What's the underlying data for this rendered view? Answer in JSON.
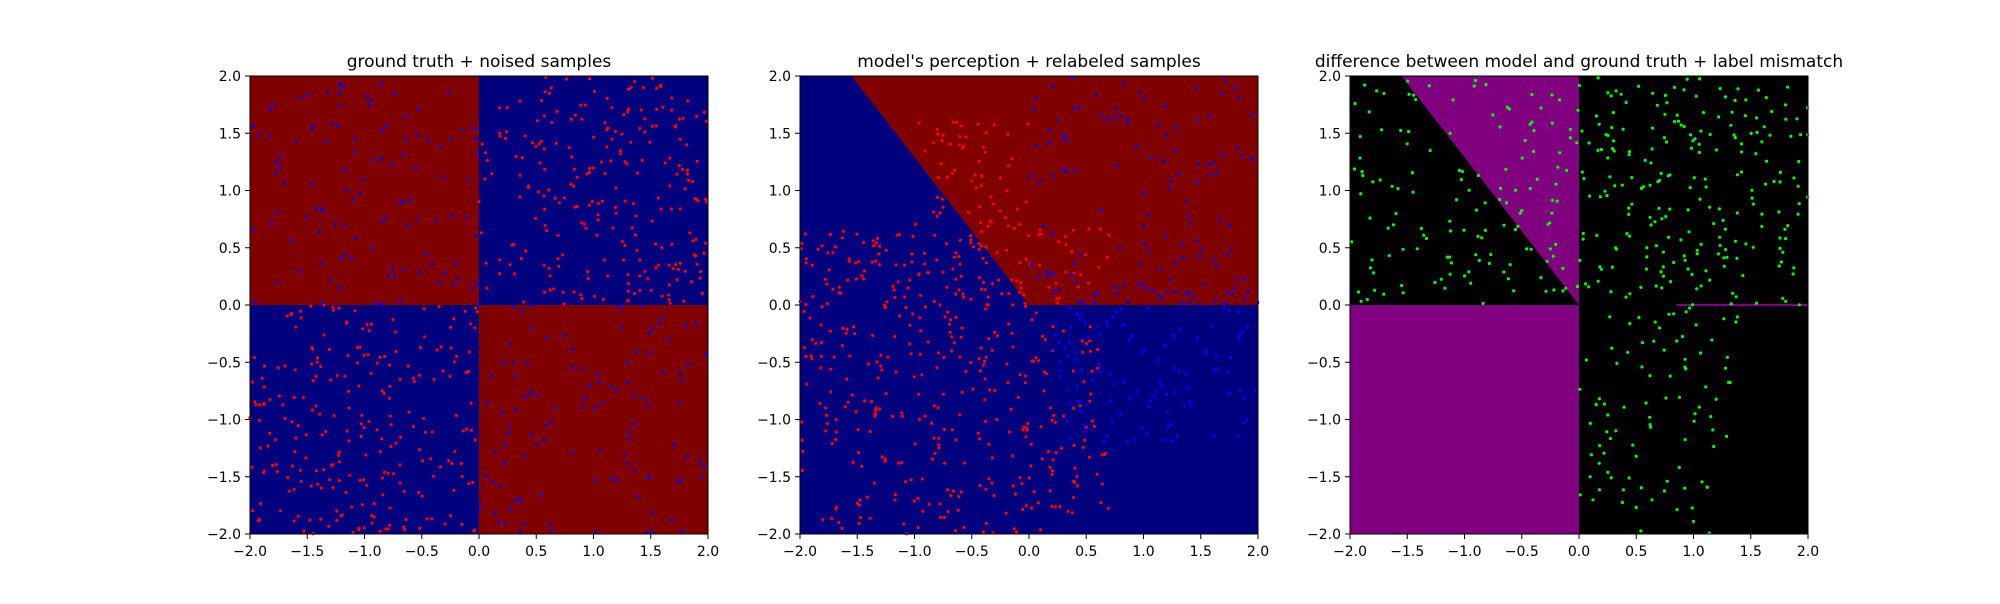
{
  "chart_data": [
    {
      "type": "scatter",
      "title": "ground truth + noised samples",
      "xlim": [
        -2.0,
        2.0
      ],
      "ylim": [
        -2.0,
        2.0
      ],
      "xticks": [
        "−2.0",
        "−1.5",
        "−1.0",
        "−0.5",
        "0.0",
        "0.5",
        "1.0",
        "1.5",
        "2.0"
      ],
      "yticks": [
        "−2.0",
        "−1.5",
        "−1.0",
        "−0.5",
        "0.0",
        "0.5",
        "1.0",
        "1.5",
        "2.0"
      ],
      "background_regions": [
        {
          "class": "red",
          "polygon": [
            [
              -2,
              0
            ],
            [
              0,
              0
            ],
            [
              0,
              2
            ],
            [
              -2,
              2
            ]
          ]
        },
        {
          "class": "blue",
          "polygon": [
            [
              0,
              0
            ],
            [
              2,
              0
            ],
            [
              2,
              2
            ],
            [
              0,
              2
            ]
          ]
        },
        {
          "class": "blue",
          "polygon": [
            [
              -2,
              -2
            ],
            [
              0,
              -2
            ],
            [
              0,
              0
            ],
            [
              -2,
              0
            ]
          ]
        },
        {
          "class": "red",
          "polygon": [
            [
              0,
              -2
            ],
            [
              2,
              -2
            ],
            [
              2,
              0
            ],
            [
              0,
              0
            ]
          ]
        }
      ],
      "point_clusters": [
        {
          "class": "blue",
          "x_range": [
            -2,
            0
          ],
          "y_range": [
            0,
            2
          ],
          "count": 110
        },
        {
          "class": "red",
          "x_range": [
            0,
            2
          ],
          "y_range": [
            0,
            2
          ],
          "count": 240
        },
        {
          "class": "red",
          "x_range": [
            -2,
            0
          ],
          "y_range": [
            -2,
            0
          ],
          "count": 240
        },
        {
          "class": "blue",
          "x_range": [
            0,
            2
          ],
          "y_range": [
            -2,
            0
          ],
          "count": 110
        }
      ]
    },
    {
      "type": "scatter",
      "title": "model's perception + relabeled samples",
      "xlim": [
        -2.0,
        2.0
      ],
      "ylim": [
        -2.0,
        2.0
      ],
      "xticks": [
        "−2.0",
        "−1.5",
        "−1.0",
        "−0.5",
        "0.0",
        "0.5",
        "1.0",
        "1.5",
        "2.0"
      ],
      "yticks": [
        "−2.0",
        "−1.5",
        "−1.0",
        "−0.5",
        "0.0",
        "0.5",
        "1.0",
        "1.5",
        "2.0"
      ],
      "background_regions": [
        {
          "class": "blue",
          "polygon": [
            [
              -2,
              -2
            ],
            [
              2,
              -2
            ],
            [
              2,
              2
            ],
            [
              -2,
              2
            ]
          ]
        },
        {
          "class": "red",
          "polygon": [
            [
              -1.55,
              2
            ],
            [
              2,
              2
            ],
            [
              2,
              0
            ],
            [
              0,
              0
            ]
          ]
        }
      ],
      "point_clusters": [
        {
          "class": "red",
          "x_range": [
            -1.0,
            0.0
          ],
          "y_range": [
            0.0,
            1.6
          ],
          "count": 90
        },
        {
          "class": "red",
          "x_range": [
            -2,
            0.7
          ],
          "y_range": [
            -2,
            0.7
          ],
          "count": 420
        },
        {
          "class": "blue",
          "x_range": [
            0.2,
            2.0
          ],
          "y_range": [
            -1.2,
            0.2
          ],
          "count": 130
        },
        {
          "class": "blue",
          "x_range": [
            0.0,
            2.0
          ],
          "y_range": [
            0.0,
            2.0
          ],
          "count": 120
        }
      ]
    },
    {
      "type": "scatter",
      "title": "difference between model and ground truth + label mismatch",
      "xlim": [
        -2.0,
        2.0
      ],
      "ylim": [
        -2.0,
        2.0
      ],
      "xticks": [
        "−2.0",
        "−1.5",
        "−1.0",
        "−0.5",
        "0.0",
        "0.5",
        "1.0",
        "1.5",
        "2.0"
      ],
      "yticks": [
        "−2.0",
        "−1.5",
        "−1.0",
        "−0.5",
        "0.0",
        "0.5",
        "1.0",
        "1.5",
        "2.0"
      ],
      "background_regions": [
        {
          "class": "black",
          "polygon": [
            [
              -2,
              -2
            ],
            [
              2,
              -2
            ],
            [
              2,
              2
            ],
            [
              -2,
              2
            ]
          ]
        },
        {
          "class": "purple",
          "polygon": [
            [
              -1.55,
              2
            ],
            [
              0,
              2
            ],
            [
              0,
              0
            ]
          ]
        },
        {
          "class": "purple",
          "polygon": [
            [
              -2,
              -2
            ],
            [
              0,
              -2
            ],
            [
              0,
              0
            ],
            [
              -2,
              0
            ]
          ]
        },
        {
          "class": "purple",
          "polygon": [
            [
              0.85,
              0.01
            ],
            [
              2,
              0.01
            ],
            [
              2,
              -0.01
            ],
            [
              0.85,
              -0.01
            ]
          ]
        }
      ],
      "point_clusters": [
        {
          "class": "green",
          "x_range": [
            -2,
            0
          ],
          "y_range": [
            0,
            2
          ],
          "count": 140
        },
        {
          "class": "green",
          "x_range": [
            0,
            2
          ],
          "y_range": [
            0,
            2
          ],
          "count": 220
        },
        {
          "class": "green",
          "x_range": [
            0,
            1.4
          ],
          "y_range": [
            -2,
            0
          ],
          "count": 90
        }
      ]
    }
  ],
  "colors": {
    "red": "#800000",
    "blue": "#00007f",
    "black": "#000000",
    "purple": "#800080",
    "point_red": "#ff0000",
    "point_blue": "#0000ff",
    "point_green": "#00ff00"
  }
}
